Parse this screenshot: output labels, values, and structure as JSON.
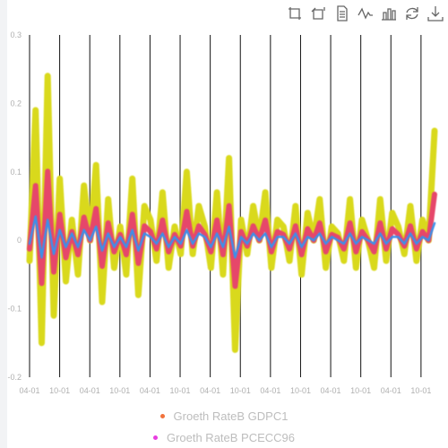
{
  "toolbox": {
    "icons": [
      "zoom-area-icon",
      "zoom-reset-icon",
      "data-view-icon",
      "line-chart-icon",
      "bar-chart-icon",
      "restore-icon",
      "save-image-icon"
    ]
  },
  "chart_data": {
    "type": "line",
    "title": "",
    "xlabel": "",
    "ylabel": "",
    "ylim": [
      -0.2,
      0.3
    ],
    "yticks": [
      "-0.2",
      "-0.1",
      "0",
      "0.1",
      "0.2",
      "0.3"
    ],
    "xtick_labels": [
      "04-01",
      "10-01",
      "04-01",
      "10-01",
      "04-01",
      "10-01",
      "04-01",
      "10-01",
      "04-01",
      "10-01",
      "04-01",
      "10-01",
      "04-01",
      "10-01"
    ],
    "grid": "vertical",
    "legend_position": "bottom-center",
    "colors": {
      "yellow_band": "#d9d91a",
      "red_band": "#e6476a",
      "blue_line": "#3d8fe8"
    },
    "series": [
      {
        "name": "Groeth RateB GDPC1",
        "legend_color": "#f2723c",
        "values": [
          -0.03,
          0.19,
          -0.15,
          0.24,
          -0.11,
          0.09,
          -0.06,
          0.03,
          -0.05,
          0.08,
          0.0,
          0.11,
          -0.09,
          0.06,
          -0.04,
          0.02,
          -0.05,
          0.09,
          -0.08,
          0.05,
          0.03,
          -0.03,
          0.07,
          -0.04,
          0.02,
          -0.02,
          0.1,
          -0.02,
          0.05,
          0.02,
          -0.04,
          0.07,
          -0.05,
          0.12,
          -0.16,
          0.03,
          -0.02,
          0.05,
          0.0,
          0.07,
          -0.04,
          0.03,
          0.02,
          -0.03,
          0.05,
          -0.05,
          0.04,
          0.0,
          0.06,
          -0.04,
          0.02,
          0.01,
          -0.03,
          0.06,
          -0.04,
          0.03,
          0.0,
          -0.04,
          0.06,
          -0.03,
          0.04,
          0.02,
          -0.02,
          0.05,
          -0.03,
          0.03,
          0.0,
          0.16
        ]
      },
      {
        "name": "Groeth RateB PCECC96",
        "legend_color": "#e83ee0",
        "values": [
          -0.01,
          0.07,
          -0.05,
          0.06,
          -0.04,
          0.03,
          -0.02,
          0.02,
          -0.02,
          0.03,
          0.0,
          0.04,
          -0.03,
          0.02,
          -0.02,
          0.01,
          -0.02,
          0.03,
          -0.03,
          0.02,
          0.01,
          -0.01,
          0.02,
          -0.02,
          0.01,
          -0.01,
          0.03,
          -0.01,
          0.02,
          0.01,
          -0.02,
          0.02,
          -0.02,
          0.04,
          -0.05,
          0.01,
          -0.01,
          0.02,
          0.0,
          0.02,
          -0.02,
          0.01,
          0.01,
          -0.01,
          0.02,
          -0.02,
          0.01,
          0.0,
          0.02,
          -0.01,
          0.01,
          0.0,
          -0.01,
          0.02,
          -0.01,
          0.01,
          0.0,
          -0.01,
          0.02,
          -0.01,
          0.01,
          0.01,
          -0.01,
          0.02,
          -0.01,
          0.01,
          0.0,
          0.05
        ]
      }
    ]
  }
}
